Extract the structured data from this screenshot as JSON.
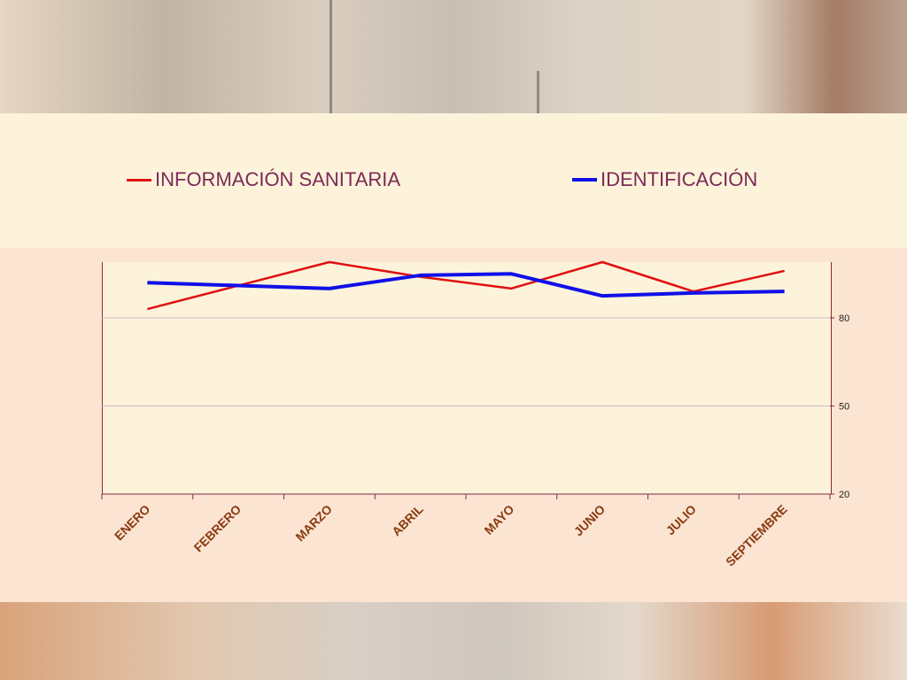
{
  "chart_data": {
    "type": "line",
    "categories": [
      "ENERO",
      "FEBRERO",
      "MARZO",
      "ABRIL",
      "MAYO",
      "JUNIO",
      "JULIO",
      "SEPTIEMBRE"
    ],
    "series": [
      {
        "name": "INFORMACIÓN SANITARIA",
        "color": "#e01010",
        "values": [
          83,
          91,
          99,
          94,
          90,
          99,
          89,
          96
        ]
      },
      {
        "name": "IDENTIFICACIÓN",
        "color": "#1010e8",
        "values": [
          92,
          91,
          90,
          94.5,
          95,
          87.5,
          88.5,
          89
        ]
      }
    ],
    "yticks": [
      20,
      50,
      80
    ],
    "ylim": [
      20,
      99
    ],
    "y_axis_side": "right",
    "legend_position": "top",
    "grid": "horizontal"
  }
}
